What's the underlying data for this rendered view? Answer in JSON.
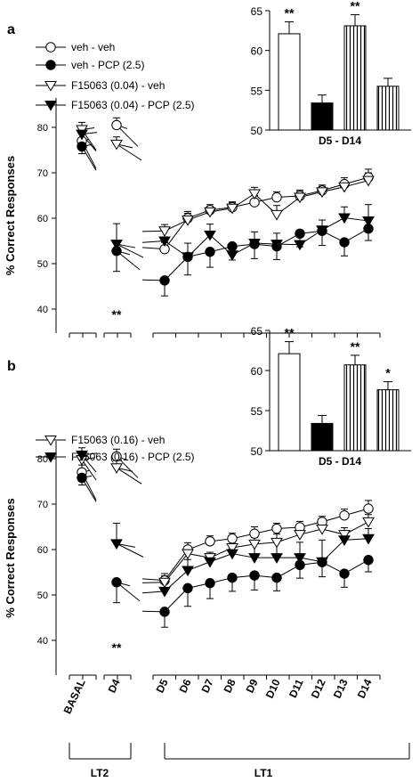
{
  "panels": [
    {
      "letter": "a",
      "ylabel": "% Correct Responses",
      "yticks": [
        40,
        50,
        60,
        70,
        80
      ],
      "ylim": [
        35,
        86
      ],
      "legend": [
        "veh - veh",
        "veh - PCP (2.5)",
        "F15063 (0.04) - veh",
        "F15063 (0.04) - PCP (2.5)"
      ],
      "series": [
        {
          "name": "veh - veh",
          "marker": "circle-open",
          "basal": 77,
          "d4": 80.5,
          "days": [
            53.2,
            60,
            61.8,
            62.4,
            63.5,
            64.6,
            64.9,
            66.1,
            67.5,
            69
          ],
          "err": [
            1.5,
            1.5,
            1.2,
            1.2,
            1.5,
            1.2,
            1.3,
            1.2,
            1.4,
            1.8
          ]
        },
        {
          "name": "veh - PCP (2.5)",
          "marker": "circle-filled",
          "basal": 75.8,
          "d4": 52.8,
          "days": [
            46.3,
            51.5,
            52.6,
            53.8,
            54.3,
            53.8,
            56.6,
            57.2,
            54.7,
            57.7
          ],
          "err": [
            3.4,
            4,
            3.4,
            3,
            3.2,
            2.9,
            2.9,
            3.2,
            3,
            2.6
          ]
        },
        {
          "name": "F15063 (0.04) - veh",
          "marker": "tri-down-open",
          "basal": 79.5,
          "d4": 76.3,
          "days": [
            57.2,
            59.6,
            61.4,
            62.2,
            65.4,
            60.8,
            64.6,
            65.8,
            66.9,
            68.3
          ],
          "err": [
            1.4,
            1.5,
            1.2,
            1.2,
            1.4,
            2,
            1.3,
            1.2,
            1.2,
            1.7
          ]
        },
        {
          "name": "F15063 (0.04) - PCP (2.5)",
          "marker": "tri-down-filled",
          "basal": 78.5,
          "d4": 54.3,
          "days": [
            55,
            51.5,
            56.3,
            51.9,
            54.5,
            54.3,
            54.2,
            57.4,
            60.1,
            59.4
          ],
          "err": [
            2.4,
            3,
            2.4,
            2.4,
            2.5,
            2.4,
            2,
            2.2,
            2.4,
            3.6
          ]
        }
      ],
      "stars": [
        "**"
      ],
      "inset": {
        "title": "D5 - D14",
        "ylim": [
          50,
          65
        ],
        "yticks": [
          50,
          55,
          60,
          65
        ],
        "bars": [
          62.1,
          53.4,
          63.1,
          55.5
        ],
        "err": [
          1.5,
          1,
          1.4,
          1
        ],
        "stars": [
          "**",
          "",
          "**",
          ""
        ]
      }
    },
    {
      "letter": "b",
      "ylabel": "% Correct Responses",
      "yticks": [
        40,
        50,
        60,
        70,
        80
      ],
      "ylim": [
        35,
        86
      ],
      "legend": [
        "F15063 (0.16) - veh",
        "F15063 (0.16) - PCP (2.5)"
      ],
      "series": [
        {
          "name": "veh - veh",
          "marker": "circle-open",
          "basal": 77,
          "d4": 80.5,
          "days": [
            53.2,
            60,
            61.8,
            62.4,
            63.5,
            64.6,
            64.9,
            66.1,
            67.5,
            69
          ],
          "err": [
            1.5,
            1.5,
            1.2,
            1.2,
            1.5,
            1.2,
            1.3,
            1.2,
            1.4,
            1.8
          ]
        },
        {
          "name": "veh - PCP (2.5)",
          "marker": "circle-filled",
          "basal": 75.8,
          "d4": 52.8,
          "days": [
            46.3,
            51.5,
            52.6,
            53.8,
            54.3,
            53.8,
            56.6,
            57.2,
            54.7,
            57.7
          ],
          "err": [
            3.4,
            4,
            3.4,
            3,
            3.2,
            2.9,
            2.9,
            3.2,
            3,
            2.6
          ]
        },
        {
          "name": "F15063 (0.16) - veh",
          "marker": "tri-down-open",
          "basal": 79.8,
          "d4": 78,
          "days": [
            52.8,
            59.1,
            58.2,
            60.4,
            61.2,
            61.6,
            63.3,
            64.5,
            63.3,
            66.1
          ],
          "err": [
            1.4,
            1.5,
            1.2,
            1.2,
            1.4,
            1.8,
            1.3,
            1.5,
            1.5,
            1.6
          ]
        },
        {
          "name": "F15063 (0.16) - PCP (2.5)",
          "marker": "tri-down-filled",
          "basal": 80.8,
          "d4": 61.3,
          "days": [
            50.8,
            55.4,
            57.3,
            59.1,
            58.2,
            58.2,
            58.2,
            57.3,
            62.1,
            62.4
          ],
          "err": [
            2.4,
            2.4,
            1.5,
            2.2,
            3.6,
            3.4,
            3.4,
            4.8,
            2,
            2.2
          ]
        }
      ],
      "stars": [
        "**"
      ],
      "inset": {
        "title": "D5 - D14",
        "ylim": [
          50,
          65
        ],
        "yticks": [
          50,
          55,
          60,
          65
        ],
        "bars": [
          62.1,
          53.4,
          60.7,
          57.6
        ],
        "err": [
          1.5,
          1,
          1.2,
          1
        ],
        "stars": [
          "**",
          "",
          "**",
          "*"
        ]
      }
    }
  ],
  "xlabels": [
    "BASAL",
    "D4",
    "D5",
    "D6",
    "D7",
    "D8",
    "D9",
    "D10",
    "D11",
    "D12",
    "D13",
    "D14"
  ],
  "groups": [
    "LT2",
    "LT1"
  ],
  "chart_data": [
    {
      "type": "line",
      "ylabel": "% Correct Responses",
      "ylim": [
        35,
        86
      ],
      "categories": [
        "BASAL",
        "D4",
        "D5",
        "D6",
        "D7",
        "D8",
        "D9",
        "D10",
        "D11",
        "D12",
        "D13",
        "D14"
      ],
      "series": [
        {
          "name": "veh - veh",
          "values": [
            77,
            80.5,
            53.2,
            60,
            61.8,
            62.4,
            63.5,
            64.6,
            64.9,
            66.1,
            67.5,
            69
          ]
        },
        {
          "name": "veh - PCP (2.5)",
          "values": [
            75.8,
            52.8,
            46.3,
            51.5,
            52.6,
            53.8,
            54.3,
            53.8,
            56.6,
            57.2,
            54.7,
            57.7
          ]
        },
        {
          "name": "F15063 (0.04) - veh",
          "values": [
            79.5,
            76.3,
            57.2,
            59.6,
            61.4,
            62.2,
            65.4,
            60.8,
            64.6,
            65.8,
            66.9,
            68.3
          ]
        },
        {
          "name": "F15063 (0.04) - PCP (2.5)",
          "values": [
            78.5,
            54.3,
            55,
            51.5,
            56.3,
            51.9,
            54.5,
            54.3,
            54.2,
            57.4,
            60.1,
            59.4
          ]
        }
      ]
    },
    {
      "type": "bar",
      "title": "D5 - D14",
      "ylim": [
        50,
        65
      ],
      "values": [
        62.1,
        53.4,
        63.1,
        55.5
      ]
    },
    {
      "type": "line",
      "ylabel": "% Correct Responses",
      "ylim": [
        35,
        86
      ],
      "categories": [
        "BASAL",
        "D4",
        "D5",
        "D6",
        "D7",
        "D8",
        "D9",
        "D10",
        "D11",
        "D12",
        "D13",
        "D14"
      ],
      "series": [
        {
          "name": "veh - veh",
          "values": [
            77,
            80.5,
            53.2,
            60,
            61.8,
            62.4,
            63.5,
            64.6,
            64.9,
            66.1,
            67.5,
            69
          ]
        },
        {
          "name": "veh - PCP (2.5)",
          "values": [
            75.8,
            52.8,
            46.3,
            51.5,
            52.6,
            53.8,
            54.3,
            53.8,
            56.6,
            57.2,
            54.7,
            57.7
          ]
        },
        {
          "name": "F15063 (0.16) - veh",
          "values": [
            79.8,
            78,
            52.8,
            59.1,
            58.2,
            60.4,
            61.2,
            61.6,
            63.3,
            64.5,
            63.3,
            66.1
          ]
        },
        {
          "name": "F15063 (0.16) - PCP (2.5)",
          "values": [
            80.8,
            61.3,
            50.8,
            55.4,
            57.3,
            59.1,
            58.2,
            58.2,
            58.2,
            57.3,
            62.1,
            62.4
          ]
        }
      ]
    },
    {
      "type": "bar",
      "title": "D5 - D14",
      "ylim": [
        50,
        65
      ],
      "values": [
        62.1,
        53.4,
        60.7,
        57.6
      ]
    }
  ]
}
